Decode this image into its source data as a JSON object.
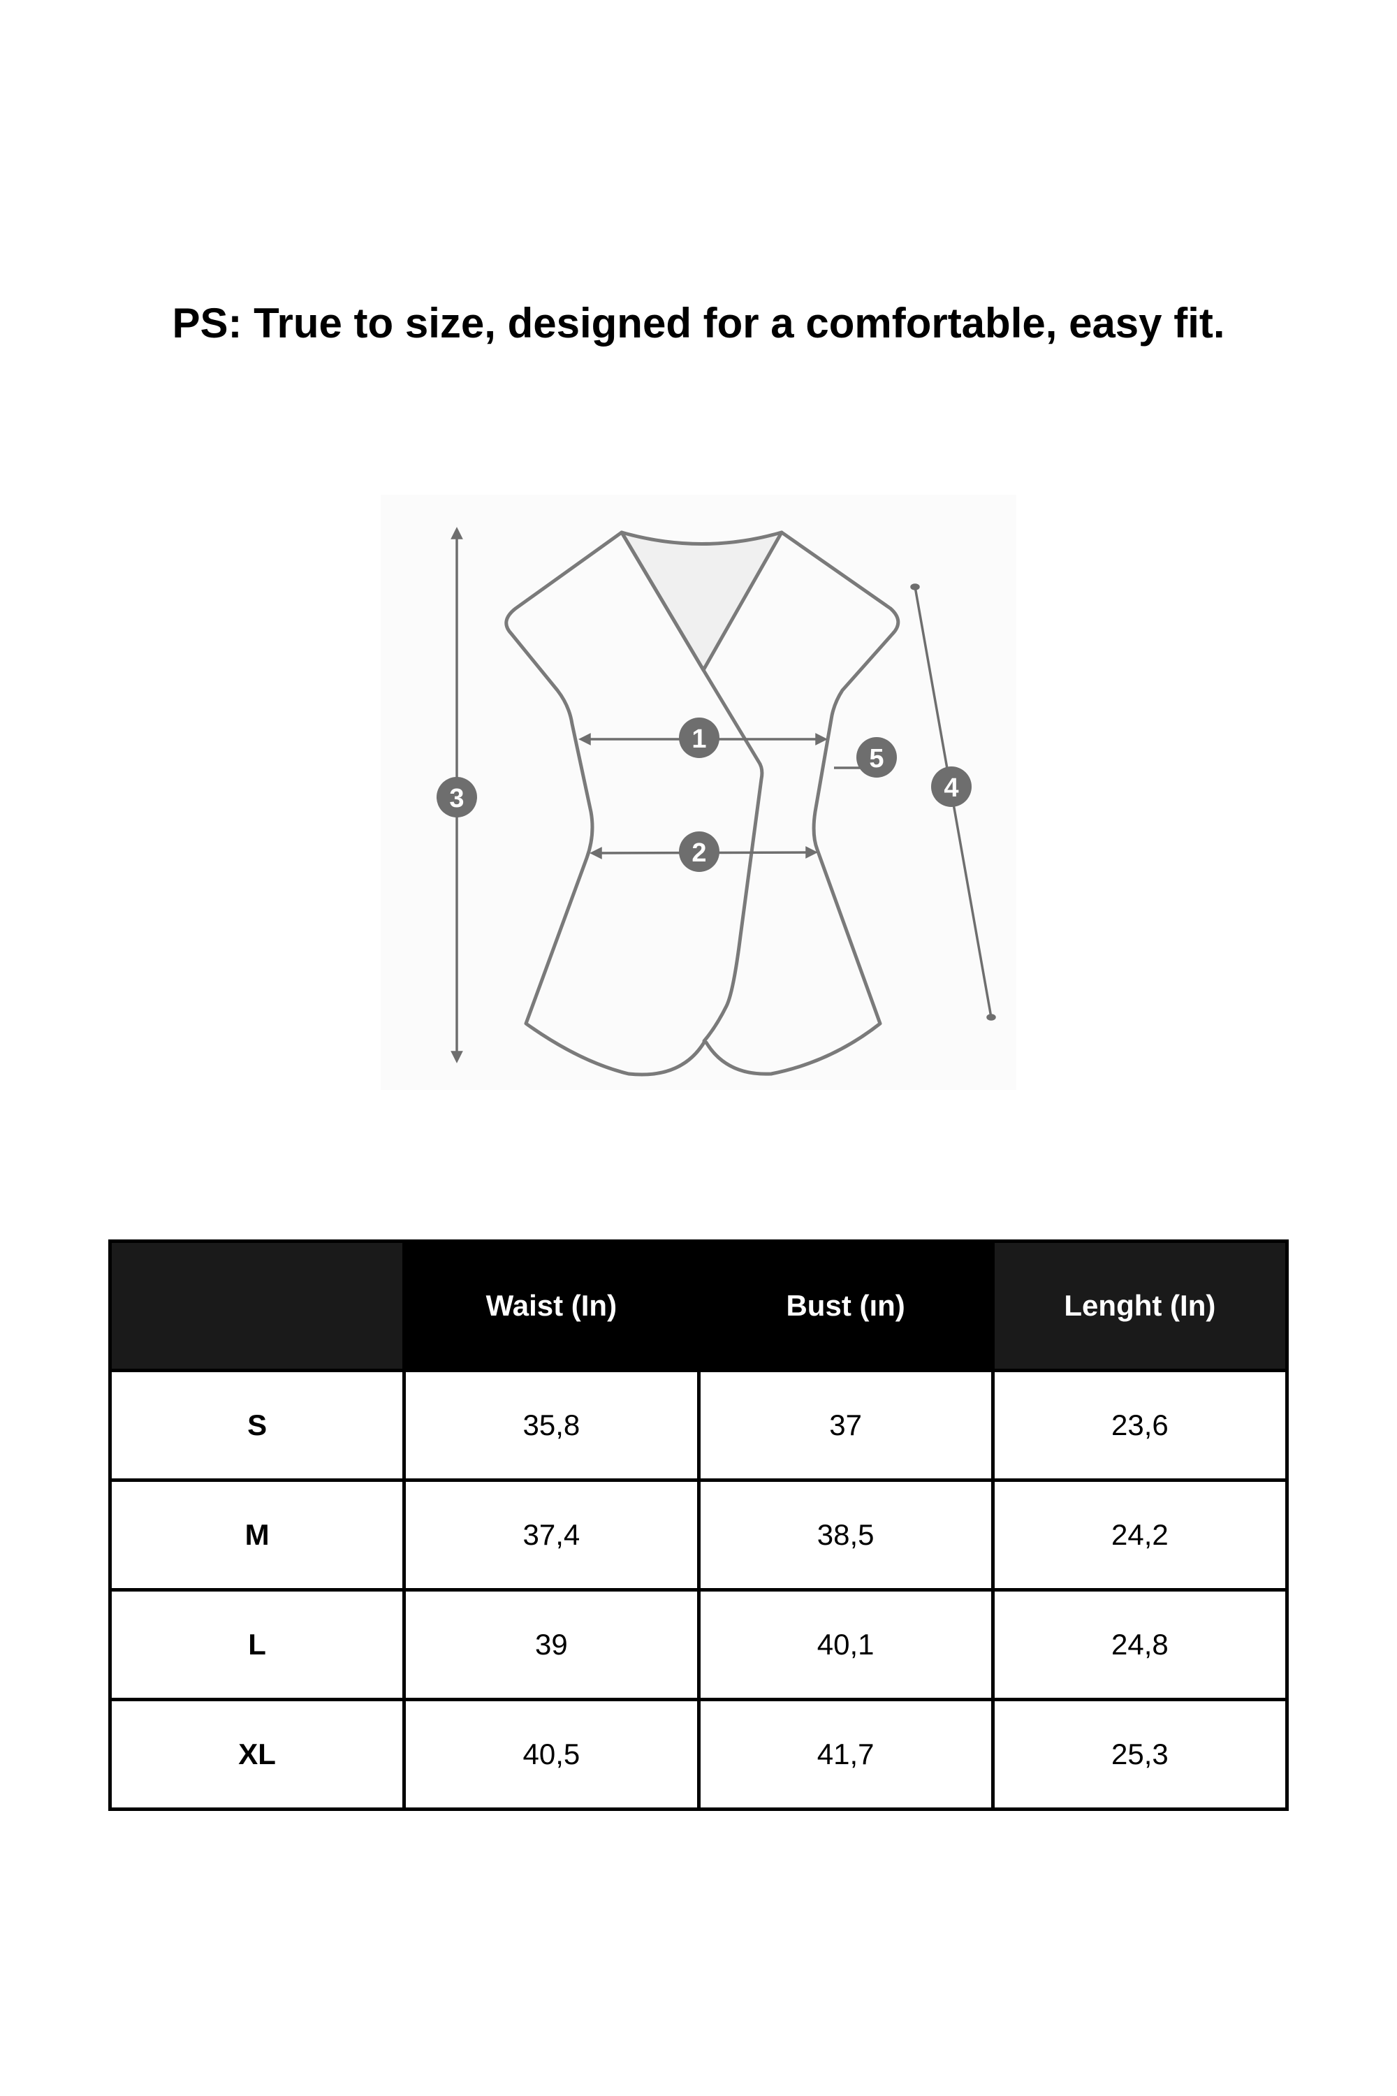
{
  "title": "PS: True to size, designed for a comfortable, easy fit.",
  "diagram": {
    "markers": [
      "1",
      "2",
      "3",
      "4",
      "5"
    ],
    "line_color": "#777777",
    "marker_color": "#6e6e6e"
  },
  "table": {
    "headers": [
      "",
      "Waist (In)",
      "Bust (ın)",
      "Lenght (In)"
    ],
    "rows": [
      [
        "S",
        "35,8",
        "37",
        "23,6"
      ],
      [
        "M",
        "37,4",
        "38,5",
        "24,2"
      ],
      [
        "L",
        "39",
        "40,1",
        "24,8"
      ],
      [
        "XL",
        "40,5",
        "41,7",
        "25,3"
      ]
    ]
  }
}
